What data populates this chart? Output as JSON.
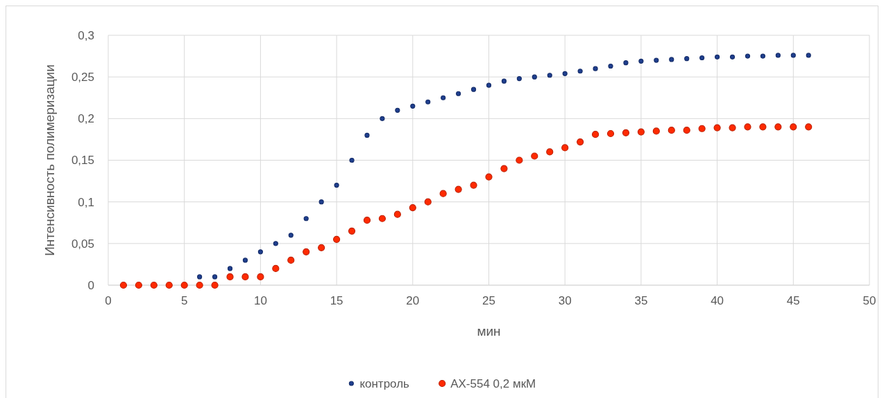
{
  "chart_data": {
    "type": "scatter",
    "xlabel": "мин",
    "ylabel": "Интенсивность полимеризации",
    "x": [
      1,
      2,
      3,
      4,
      5,
      6,
      7,
      8,
      9,
      10,
      11,
      12,
      13,
      14,
      15,
      16,
      17,
      18,
      19,
      20,
      21,
      22,
      23,
      24,
      25,
      26,
      27,
      28,
      29,
      30,
      31,
      32,
      33,
      34,
      35,
      36,
      37,
      38,
      39,
      40,
      41,
      42,
      43,
      44,
      45,
      46
    ],
    "series": [
      {
        "name": "контроль",
        "color": "#1f3f8f",
        "values": [
          null,
          null,
          null,
          null,
          null,
          0.01,
          0.01,
          0.02,
          0.03,
          0.04,
          0.05,
          0.06,
          0.08,
          0.1,
          0.12,
          0.15,
          0.18,
          0.2,
          0.21,
          0.215,
          0.22,
          0.225,
          0.23,
          0.235,
          0.24,
          0.245,
          0.248,
          0.25,
          0.252,
          0.254,
          0.257,
          0.26,
          0.263,
          0.267,
          0.269,
          0.27,
          0.271,
          0.272,
          0.273,
          0.274,
          0.274,
          0.275,
          0.275,
          0.276,
          0.276,
          0.276
        ]
      },
      {
        "name": "АХ-554 0,2 мкМ",
        "color": "#ff2a00",
        "values": [
          0,
          0,
          0,
          0,
          0,
          0,
          0,
          0.01,
          0.01,
          0.01,
          0.02,
          0.03,
          0.04,
          0.045,
          0.055,
          0.065,
          0.078,
          0.08,
          0.085,
          0.093,
          0.1,
          0.11,
          0.115,
          0.12,
          0.13,
          0.14,
          0.15,
          0.155,
          0.16,
          0.165,
          0.172,
          0.181,
          0.182,
          0.183,
          0.184,
          0.185,
          0.186,
          0.186,
          0.188,
          0.189,
          0.189,
          0.19,
          0.19,
          0.19,
          0.19,
          0.19
        ]
      }
    ],
    "xlim": [
      0,
      50
    ],
    "xticks": [
      0,
      5,
      10,
      15,
      20,
      25,
      30,
      35,
      40,
      45,
      50
    ],
    "ylim": [
      0,
      0.3
    ],
    "yticks": [
      {
        "value": 0,
        "label": "0"
      },
      {
        "value": 0.05,
        "label": "0,05"
      },
      {
        "value": 0.1,
        "label": "0,1"
      },
      {
        "value": 0.15,
        "label": "0,15"
      },
      {
        "value": 0.2,
        "label": "0,2"
      },
      {
        "value": 0.25,
        "label": "0,25"
      },
      {
        "value": 0.3,
        "label": "0,3"
      }
    ],
    "grid": true,
    "legend": "bottom",
    "marker": "circle"
  }
}
